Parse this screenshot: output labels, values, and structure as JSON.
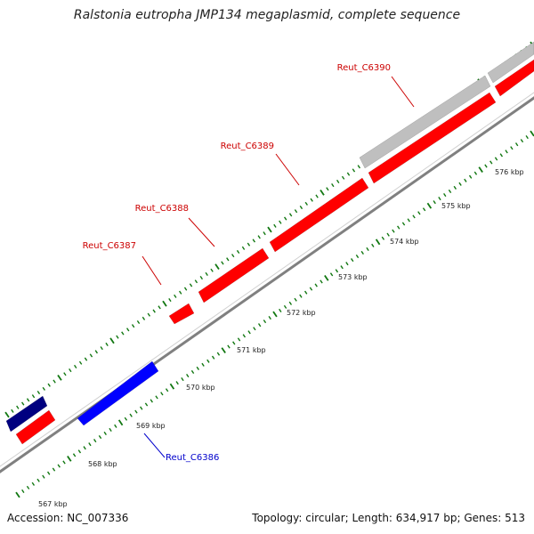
{
  "title": "Ralstonia eutropha JMP134 megaplasmid, complete sequence",
  "footer": {
    "accession": "Accession: NC_007336",
    "stats": "Topology: circular; Length: 634,917 bp; Genes: 513"
  },
  "colors": {
    "forward_gene": "#ff0000",
    "reverse_gene": "#0000ff",
    "dark_gene": "#000080",
    "gray_gene": "#bfbfbf",
    "tick": "#117711",
    "backbone": "#808080",
    "forward_label": "#cc0000",
    "reverse_label": "#0000cc"
  },
  "scale": {
    "unit": "kbp",
    "major_ticks": [
      "567 kbp",
      "568 kbp",
      "569 kbp",
      "570 kbp",
      "571 kbp",
      "572 kbp",
      "573 kbp",
      "574 kbp",
      "575 kbp",
      "576 kbp"
    ]
  },
  "gene_labels": [
    {
      "text": "Reut_C6387",
      "strand": "forward"
    },
    {
      "text": "Reut_C6388",
      "strand": "forward"
    },
    {
      "text": "Reut_C6389",
      "strand": "forward"
    },
    {
      "text": "Reut_C6390",
      "strand": "forward"
    },
    {
      "text": "Reut_C6386",
      "strand": "reverse"
    }
  ]
}
